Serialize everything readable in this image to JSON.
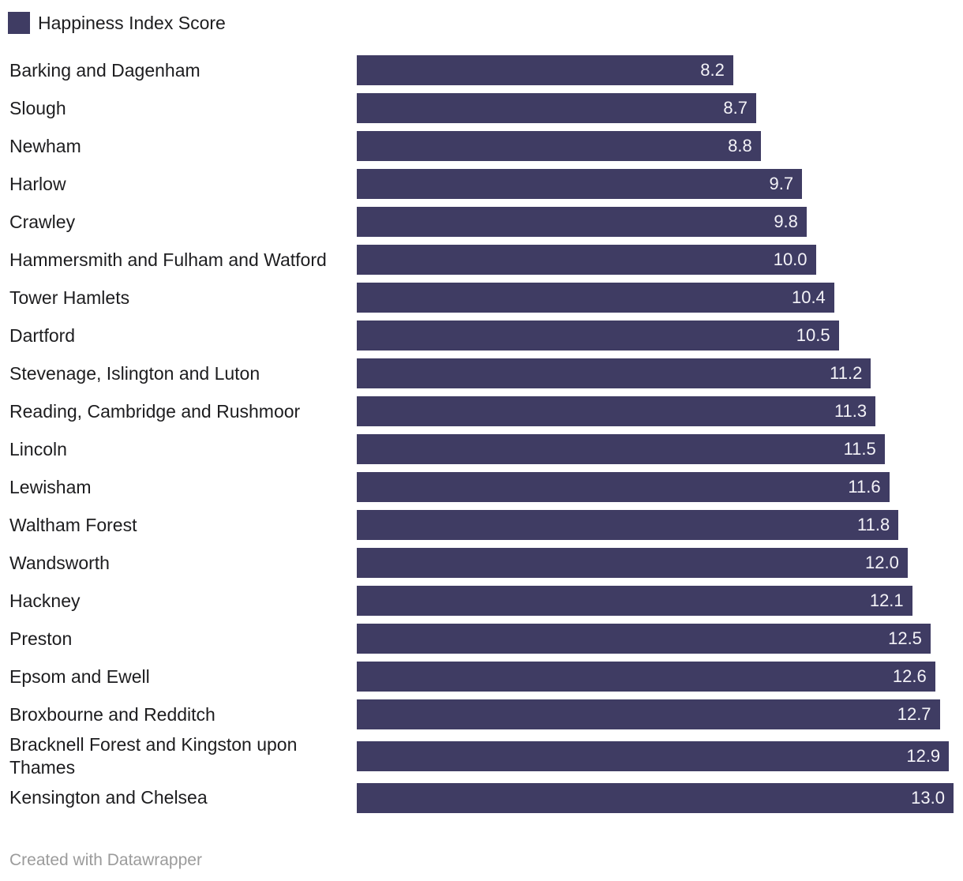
{
  "legend": {
    "label": "Happiness Index Score"
  },
  "colors": {
    "bar": "#3f3c63",
    "label_text": "#1d1d1f",
    "value_text": "#f4f3f8",
    "footer_text": "#9b9b9b"
  },
  "footer": {
    "credit": "Created with Datawrapper"
  },
  "chart_data": {
    "type": "bar",
    "orientation": "horizontal",
    "title": "",
    "series_name": "Happiness Index Score",
    "legend_position": "top-left",
    "grid": false,
    "value_labels_position": "inside-end",
    "xlim": [
      0,
      13.0
    ],
    "categories": [
      "Barking and Dagenham",
      "Slough",
      "Newham",
      "Harlow",
      "Crawley",
      "Hammersmith and Fulham and Watford",
      "Tower Hamlets",
      "Dartford",
      "Stevenage, Islington and Luton",
      "Reading, Cambridge and Rushmoor",
      "Lincoln",
      "Lewisham",
      "Waltham Forest",
      "Wandsworth",
      "Hackney",
      "Preston",
      "Epsom and Ewell",
      "Broxbourne and Redditch",
      "Bracknell Forest and Kingston upon Thames",
      "Kensington and Chelsea"
    ],
    "values": [
      8.2,
      8.7,
      8.8,
      9.7,
      9.8,
      10.0,
      10.4,
      10.5,
      11.2,
      11.3,
      11.5,
      11.6,
      11.8,
      12.0,
      12.1,
      12.5,
      12.6,
      12.7,
      12.9,
      13.0
    ],
    "value_labels": [
      "8.2",
      "8.7",
      "8.8",
      "9.7",
      "9.8",
      "10.0",
      "10.4",
      "10.5",
      "11.2",
      "11.3",
      "11.5",
      "11.6",
      "11.8",
      "12.0",
      "12.1",
      "12.5",
      "12.6",
      "12.7",
      "12.9",
      "13.0"
    ]
  }
}
